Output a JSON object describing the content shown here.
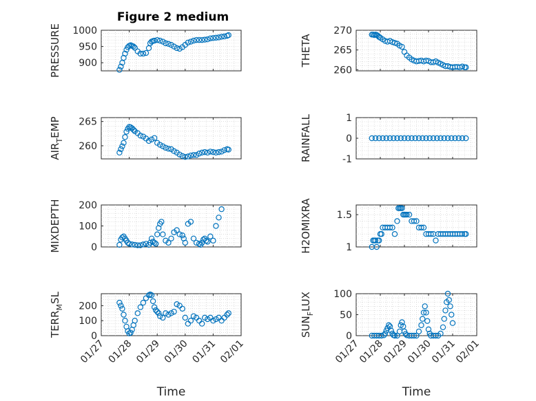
{
  "figure_title": "Figure 2 medium",
  "marker_color": "#0072bd",
  "chart_data": [
    {
      "id": "pressure",
      "type": "scatter",
      "ylabel": "PRESSURE",
      "ylim": [
        875,
        1000
      ],
      "yticks": [
        900,
        950,
        1000
      ],
      "ytick_labels": [
        "900",
        "950",
        "1000"
      ],
      "xlim": [
        0,
        5
      ],
      "xticks": [
        0,
        1,
        2,
        3,
        4,
        5
      ],
      "xtick_labels": [],
      "xlabel": "",
      "title": "Figure 2 medium",
      "x": [
        0.65,
        0.7,
        0.75,
        0.8,
        0.85,
        0.9,
        0.95,
        1.0,
        1.05,
        1.1,
        1.15,
        1.2,
        1.3,
        1.4,
        1.5,
        1.6,
        1.7,
        1.75,
        1.8,
        1.85,
        1.9,
        2.0,
        2.1,
        2.2,
        2.3,
        2.4,
        2.5,
        2.6,
        2.7,
        2.8,
        2.9,
        3.0,
        3.1,
        3.2,
        3.3,
        3.4,
        3.5,
        3.6,
        3.7,
        3.8,
        3.9,
        4.0,
        4.1,
        4.2,
        4.3,
        4.4,
        4.5,
        4.55
      ],
      "y": [
        878,
        888,
        900,
        915,
        928,
        940,
        948,
        952,
        954,
        952,
        950,
        946,
        935,
        928,
        928,
        930,
        945,
        960,
        965,
        967,
        968,
        970,
        968,
        965,
        960,
        958,
        955,
        950,
        945,
        943,
        948,
        955,
        962,
        965,
        968,
        970,
        970,
        970,
        971,
        972,
        975,
        976,
        977,
        978,
        980,
        981,
        983,
        985
      ]
    },
    {
      "id": "theta",
      "type": "scatter",
      "ylabel": "THETA",
      "ylim": [
        259.7,
        270
      ],
      "yticks": [
        260,
        265,
        270
      ],
      "ytick_labels": [
        "260",
        "265",
        "270"
      ],
      "xlim": [
        0,
        5
      ],
      "xticks": [
        0,
        1,
        2,
        3,
        4,
        5
      ],
      "xtick_labels": [],
      "xlabel": "",
      "x": [
        0.65,
        0.7,
        0.75,
        0.8,
        0.85,
        0.9,
        0.95,
        1.0,
        1.1,
        1.2,
        1.3,
        1.4,
        1.5,
        1.6,
        1.7,
        1.8,
        1.9,
        2.0,
        2.1,
        2.2,
        2.3,
        2.4,
        2.5,
        2.6,
        2.7,
        2.8,
        2.9,
        3.0,
        3.1,
        3.2,
        3.3,
        3.4,
        3.5,
        3.6,
        3.7,
        3.8,
        3.9,
        4.0,
        4.1,
        4.2,
        4.3,
        4.4,
        4.5,
        4.55
      ],
      "y": [
        268.9,
        268.9,
        268.8,
        268.9,
        268.8,
        268.6,
        268.3,
        268.1,
        267.7,
        267.3,
        267.1,
        267.3,
        267.0,
        266.8,
        266.6,
        266.1,
        265.8,
        264.5,
        263.6,
        263.1,
        262.6,
        262.3,
        262.1,
        262.2,
        262.3,
        262.1,
        262.3,
        262.2,
        261.9,
        261.9,
        262.1,
        261.8,
        261.5,
        261.2,
        260.9,
        260.9,
        260.7,
        260.6,
        260.7,
        260.7,
        260.6,
        260.8,
        260.6,
        260.6
      ]
    },
    {
      "id": "airtemp",
      "type": "scatter",
      "ylabel": "AIR_TEMP",
      "ylabel_parts": [
        "AIR",
        "T",
        "EMP"
      ],
      "ylim": [
        257.3,
        265.8
      ],
      "yticks": [
        260,
        265
      ],
      "ytick_labels": [
        "260",
        "265"
      ],
      "xlim": [
        0,
        5
      ],
      "xticks": [
        0,
        1,
        2,
        3,
        4,
        5
      ],
      "xtick_labels": [],
      "xlabel": "",
      "x": [
        0.65,
        0.7,
        0.75,
        0.8,
        0.85,
        0.9,
        0.95,
        1.0,
        1.05,
        1.1,
        1.15,
        1.2,
        1.3,
        1.4,
        1.5,
        1.6,
        1.7,
        1.8,
        1.9,
        2.0,
        2.1,
        2.2,
        2.3,
        2.4,
        2.5,
        2.6,
        2.7,
        2.8,
        2.9,
        3.0,
        3.1,
        3.2,
        3.3,
        3.4,
        3.5,
        3.6,
        3.7,
        3.8,
        3.9,
        4.0,
        4.1,
        4.2,
        4.3,
        4.4,
        4.5,
        4.55
      ],
      "y": [
        258.6,
        259.3,
        259.9,
        260.6,
        261.8,
        262.9,
        263.5,
        263.9,
        263.8,
        263.6,
        263.3,
        263.0,
        262.6,
        262.1,
        261.9,
        261.5,
        261.0,
        261.3,
        261.6,
        260.6,
        260.2,
        259.9,
        259.6,
        259.4,
        259.3,
        258.9,
        258.6,
        258.2,
        257.9,
        257.7,
        257.8,
        258.0,
        258.1,
        258.1,
        258.4,
        258.6,
        258.7,
        258.6,
        258.8,
        258.7,
        258.6,
        258.7,
        258.8,
        259.1,
        259.3,
        259.2
      ]
    },
    {
      "id": "rainfall",
      "type": "scatter",
      "ylabel": "RAINFALL",
      "ylim": [
        -1,
        1
      ],
      "yticks": [
        -1,
        0,
        1
      ],
      "ytick_labels": [
        "-1",
        "0",
        "1"
      ],
      "xlim": [
        0,
        5
      ],
      "xticks": [
        0,
        1,
        2,
        3,
        4,
        5
      ],
      "xtick_labels": [],
      "xlabel": "",
      "x": [
        0.65,
        0.8,
        0.95,
        1.1,
        1.25,
        1.4,
        1.55,
        1.7,
        1.85,
        2.0,
        2.15,
        2.3,
        2.45,
        2.6,
        2.75,
        2.9,
        3.05,
        3.2,
        3.35,
        3.5,
        3.65,
        3.8,
        3.95,
        4.1,
        4.25,
        4.4,
        4.55
      ],
      "y": [
        0,
        0,
        0,
        0,
        0,
        0,
        0,
        0,
        0,
        0,
        0,
        0,
        0,
        0,
        0,
        0,
        0,
        0,
        0,
        0,
        0,
        0,
        0,
        0,
        0,
        0,
        0
      ]
    },
    {
      "id": "mixdepth",
      "type": "scatter",
      "ylabel": "MIXDEPTH",
      "ylim": [
        0,
        200
      ],
      "yticks": [
        0,
        100,
        200
      ],
      "ytick_labels": [
        "0",
        "100",
        "200"
      ],
      "xlim": [
        0,
        5
      ],
      "xticks": [
        0,
        1,
        2,
        3,
        4,
        5
      ],
      "xtick_labels": [],
      "xlabel": "",
      "x": [
        0.65,
        0.7,
        0.75,
        0.8,
        0.85,
        0.9,
        0.95,
        1.0,
        1.1,
        1.2,
        1.3,
        1.4,
        1.5,
        1.6,
        1.7,
        1.75,
        1.8,
        1.85,
        1.9,
        1.95,
        2.0,
        2.05,
        2.1,
        2.15,
        2.2,
        2.3,
        2.4,
        2.5,
        2.6,
        2.7,
        2.8,
        2.9,
        2.95,
        3.0,
        3.1,
        3.2,
        3.3,
        3.4,
        3.5,
        3.55,
        3.6,
        3.65,
        3.7,
        3.75,
        3.8,
        3.9,
        4.0,
        4.1,
        4.2,
        4.3
      ],
      "y": [
        10,
        35,
        45,
        50,
        40,
        30,
        20,
        15,
        12,
        10,
        8,
        8,
        12,
        15,
        10,
        20,
        40,
        25,
        20,
        15,
        60,
        90,
        110,
        120,
        60,
        30,
        20,
        40,
        70,
        80,
        60,
        55,
        40,
        20,
        110,
        120,
        40,
        20,
        15,
        10,
        20,
        35,
        40,
        30,
        25,
        50,
        30,
        100,
        140,
        180
      ]
    },
    {
      "id": "h2omixra",
      "type": "scatter",
      "ylabel": "H2OMIXRA",
      "ylim": [
        1.0,
        1.65
      ],
      "yticks": [
        1,
        1.5
      ],
      "ytick_labels": [
        "1",
        "1.5"
      ],
      "xlim": [
        0,
        5
      ],
      "xticks": [
        0,
        1,
        2,
        3,
        4,
        5
      ],
      "xtick_labels": [],
      "xlabel": "",
      "x": [
        0.65,
        0.7,
        0.75,
        0.8,
        0.85,
        0.9,
        0.95,
        1.0,
        1.05,
        1.1,
        1.2,
        1.3,
        1.4,
        1.5,
        1.6,
        1.7,
        1.75,
        1.8,
        1.85,
        1.9,
        1.95,
        2.0,
        2.05,
        2.1,
        2.2,
        2.3,
        2.4,
        2.5,
        2.6,
        2.7,
        2.8,
        2.9,
        3.0,
        3.1,
        3.2,
        3.3,
        3.4,
        3.5,
        3.6,
        3.7,
        3.8,
        3.9,
        4.0,
        4.1,
        4.2,
        4.3,
        4.4,
        4.5,
        4.55
      ],
      "y": [
        1.0,
        1.1,
        1.1,
        1.1,
        1.0,
        1.1,
        1.1,
        1.2,
        1.2,
        1.3,
        1.3,
        1.3,
        1.3,
        1.3,
        1.2,
        1.4,
        1.6,
        1.6,
        1.6,
        1.6,
        1.5,
        1.5,
        1.5,
        1.5,
        1.5,
        1.4,
        1.4,
        1.4,
        1.3,
        1.3,
        1.3,
        1.2,
        1.2,
        1.2,
        1.2,
        1.1,
        1.2,
        1.2,
        1.2,
        1.2,
        1.2,
        1.2,
        1.2,
        1.2,
        1.2,
        1.2,
        1.2,
        1.2,
        1.2
      ]
    },
    {
      "id": "terrmsl",
      "type": "scatter",
      "ylabel": "TERR_MSL",
      "ylabel_parts": [
        "TERR",
        "M",
        "SL"
      ],
      "ylim": [
        0,
        280
      ],
      "yticks": [
        0,
        100,
        200
      ],
      "ytick_labels": [
        "0",
        "100",
        "200"
      ],
      "xlim": [
        0,
        5
      ],
      "xticks": [
        0,
        1,
        2,
        3,
        4,
        5
      ],
      "xtick_labels": [
        "01/27",
        "01/28",
        "01/29",
        "01/30",
        "01/31",
        "02/01"
      ],
      "xlabel": "Time",
      "x": [
        0.65,
        0.7,
        0.75,
        0.8,
        0.85,
        0.9,
        0.95,
        1.0,
        1.05,
        1.1,
        1.15,
        1.2,
        1.3,
        1.4,
        1.5,
        1.6,
        1.7,
        1.75,
        1.8,
        1.85,
        1.9,
        1.95,
        2.0,
        2.05,
        2.1,
        2.2,
        2.3,
        2.4,
        2.5,
        2.6,
        2.7,
        2.8,
        2.9,
        3.0,
        3.1,
        3.2,
        3.3,
        3.4,
        3.5,
        3.6,
        3.7,
        3.8,
        3.9,
        4.0,
        4.1,
        4.2,
        4.3,
        4.4,
        4.5,
        4.55
      ],
      "y": [
        220,
        200,
        180,
        140,
        100,
        60,
        30,
        15,
        20,
        40,
        70,
        100,
        150,
        190,
        220,
        250,
        270,
        275,
        270,
        230,
        190,
        170,
        160,
        150,
        130,
        120,
        150,
        140,
        150,
        160,
        210,
        200,
        180,
        120,
        80,
        100,
        130,
        120,
        100,
        80,
        120,
        110,
        120,
        100,
        110,
        120,
        100,
        120,
        140,
        150
      ]
    },
    {
      "id": "sunflux",
      "type": "scatter",
      "ylabel": "SUN_FLUX",
      "ylabel_parts": [
        "SUN",
        "F",
        "LUX"
      ],
      "ylim": [
        0,
        100
      ],
      "yticks": [
        0,
        50,
        100
      ],
      "ytick_labels": [
        "0",
        "50",
        "100"
      ],
      "xlim": [
        0,
        5
      ],
      "xticks": [
        0,
        1,
        2,
        3,
        4,
        5
      ],
      "xtick_labels": [
        "01/27",
        "01/28",
        "01/29",
        "01/30",
        "01/31",
        "02/01"
      ],
      "xlabel": "Time",
      "x": [
        0.65,
        0.75,
        0.85,
        0.95,
        1.05,
        1.15,
        1.2,
        1.25,
        1.3,
        1.35,
        1.4,
        1.45,
        1.5,
        1.55,
        1.6,
        1.7,
        1.8,
        1.85,
        1.9,
        1.95,
        2.0,
        2.05,
        2.1,
        2.2,
        2.3,
        2.4,
        2.5,
        2.6,
        2.7,
        2.75,
        2.8,
        2.85,
        2.9,
        2.95,
        3.0,
        3.05,
        3.1,
        3.2,
        3.3,
        3.4,
        3.5,
        3.6,
        3.65,
        3.7,
        3.75,
        3.8,
        3.85,
        3.9,
        3.95,
        4.0
      ],
      "y": [
        0,
        0,
        0,
        0,
        0,
        1,
        5,
        12,
        18,
        25,
        22,
        12,
        5,
        1,
        0,
        0,
        10,
        25,
        32,
        22,
        10,
        4,
        1,
        0,
        0,
        0,
        0,
        10,
        25,
        40,
        55,
        70,
        55,
        35,
        15,
        5,
        0,
        0,
        0,
        0,
        5,
        20,
        40,
        60,
        80,
        100,
        85,
        70,
        50,
        30
      ]
    }
  ]
}
